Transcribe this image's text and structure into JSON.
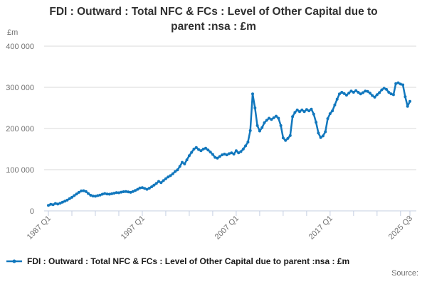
{
  "footer": {
    "source_label": "Source:"
  },
  "chart_data": {
    "type": "line",
    "title": "FDI : Outward : Total NFC & FCs : Level of Other Capital due to parent :nsa : £m",
    "grid": "horizontal",
    "legend_position": "bottom-left",
    "colors": {
      "series": "#1177bd",
      "gridline": "#d9d9d9",
      "axis": "#c5cfe2",
      "tick_label": "#707070",
      "title_text": "#303030"
    },
    "y_axis": {
      "unit_label": "£m",
      "range": [
        0,
        400000
      ],
      "ticks": [
        0,
        100000,
        200000,
        300000,
        400000
      ],
      "tick_label_format": "space-thousands"
    },
    "x_axis": {
      "start": "1987 Q1",
      "end": "2025 Q3",
      "frequency": "quarterly",
      "minor_tick_every_quarters": 10,
      "labels": [
        {
          "q": 0,
          "label": "1987 Q1"
        },
        {
          "q": 40,
          "label": "1997 Q1"
        },
        {
          "q": 80,
          "label": "2007 Q1"
        },
        {
          "q": 120,
          "label": "2017 Q1"
        },
        {
          "q": 154,
          "label": "2025 Q3"
        }
      ]
    },
    "series": [
      {
        "name": "FDI : Outward : Total NFC & FCs : Level of Other Capital due to parent :nsa : £m",
        "marker": "circle",
        "color": "#1177bd",
        "values": [
          13500,
          16000,
          15000,
          18000,
          16500,
          18500,
          21000,
          23500,
          26000,
          29500,
          33000,
          37000,
          41000,
          45000,
          48500,
          49000,
          47000,
          42000,
          38000,
          36000,
          35500,
          37000,
          38500,
          40500,
          42000,
          41000,
          40500,
          41500,
          43000,
          44500,
          44000,
          45500,
          46500,
          47000,
          46000,
          45000,
          47000,
          49500,
          52500,
          55500,
          56500,
          54500,
          52500,
          55000,
          58500,
          62500,
          66500,
          71500,
          68500,
          73500,
          78000,
          82500,
          85500,
          90000,
          95500,
          99500,
          108000,
          118000,
          114000,
          124000,
          134000,
          142000,
          150000,
          154000,
          149000,
          146000,
          150000,
          152000,
          148000,
          143000,
          137000,
          130000,
          128000,
          132000,
          136000,
          138000,
          136000,
          139000,
          141000,
          138000,
          146000,
          141000,
          144000,
          150000,
          158000,
          167000,
          195000,
          284000,
          250000,
          207000,
          194000,
          202000,
          214000,
          220000,
          225000,
          222000,
          226000,
          230000,
          225000,
          207000,
          177000,
          171000,
          176000,
          183000,
          229000,
          239000,
          245000,
          241000,
          245000,
          241000,
          246000,
          243000,
          247000,
          235000,
          215000,
          189000,
          178000,
          182000,
          192000,
          224000,
          236000,
          243000,
          257000,
          271000,
          284000,
          288000,
          285000,
          281000,
          286000,
          291000,
          288000,
          292000,
          288000,
          284000,
          287000,
          291000,
          290000,
          286000,
          280000,
          276000,
          282000,
          287000,
          294000,
          298000,
          295000,
          288000,
          284000,
          282000,
          309000,
          311000,
          308000,
          306000,
          277000,
          254000,
          266000
        ]
      }
    ]
  }
}
